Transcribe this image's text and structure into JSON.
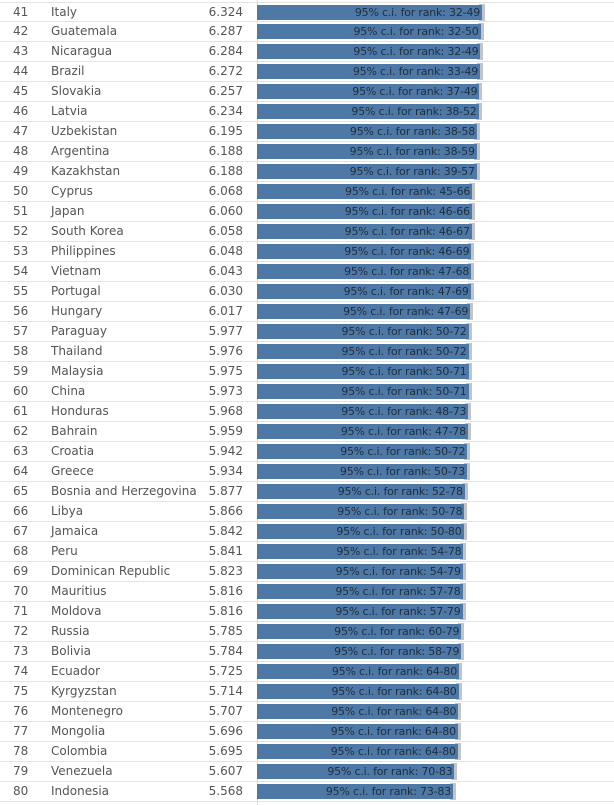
{
  "chart_data": {
    "type": "bar",
    "orientation": "horizontal",
    "label_prefix": "95% c.i. for rank: ",
    "rows": [
      {
        "rank": "41",
        "country": "Italy",
        "score": "6.324",
        "ci": "32-49"
      },
      {
        "rank": "42",
        "country": "Guatemala",
        "score": "6.287",
        "ci": "32-50"
      },
      {
        "rank": "43",
        "country": "Nicaragua",
        "score": "6.284",
        "ci": "32-49"
      },
      {
        "rank": "44",
        "country": "Brazil",
        "score": "6.272",
        "ci": "33-49"
      },
      {
        "rank": "45",
        "country": "Slovakia",
        "score": "6.257",
        "ci": "37-49"
      },
      {
        "rank": "46",
        "country": "Latvia",
        "score": "6.234",
        "ci": "38-52"
      },
      {
        "rank": "47",
        "country": "Uzbekistan",
        "score": "6.195",
        "ci": "38-58"
      },
      {
        "rank": "48",
        "country": "Argentina",
        "score": "6.188",
        "ci": "38-59"
      },
      {
        "rank": "49",
        "country": "Kazakhstan",
        "score": "6.188",
        "ci": "39-57"
      },
      {
        "rank": "50",
        "country": "Cyprus",
        "score": "6.068",
        "ci": "45-66"
      },
      {
        "rank": "51",
        "country": "Japan",
        "score": "6.060",
        "ci": "46-66"
      },
      {
        "rank": "52",
        "country": "South Korea",
        "score": "6.058",
        "ci": "46-67"
      },
      {
        "rank": "53",
        "country": "Philippines",
        "score": "6.048",
        "ci": "46-69"
      },
      {
        "rank": "54",
        "country": "Vietnam",
        "score": "6.043",
        "ci": "47-68"
      },
      {
        "rank": "55",
        "country": "Portugal",
        "score": "6.030",
        "ci": "47-69"
      },
      {
        "rank": "56",
        "country": "Hungary",
        "score": "6.017",
        "ci": "47-69"
      },
      {
        "rank": "57",
        "country": "Paraguay",
        "score": "5.977",
        "ci": "50-72"
      },
      {
        "rank": "58",
        "country": "Thailand",
        "score": "5.976",
        "ci": "50-72"
      },
      {
        "rank": "59",
        "country": "Malaysia",
        "score": "5.975",
        "ci": "50-71"
      },
      {
        "rank": "60",
        "country": "China",
        "score": "5.973",
        "ci": "50-71"
      },
      {
        "rank": "61",
        "country": "Honduras",
        "score": "5.968",
        "ci": "48-73"
      },
      {
        "rank": "62",
        "country": "Bahrain",
        "score": "5.959",
        "ci": "47-78"
      },
      {
        "rank": "63",
        "country": "Croatia",
        "score": "5.942",
        "ci": "50-72"
      },
      {
        "rank": "64",
        "country": "Greece",
        "score": "5.934",
        "ci": "50-73"
      },
      {
        "rank": "65",
        "country": "Bosnia and Herzegovina",
        "score": "5.877",
        "ci": "52-78"
      },
      {
        "rank": "66",
        "country": "Libya",
        "score": "5.866",
        "ci": "50-78"
      },
      {
        "rank": "67",
        "country": "Jamaica",
        "score": "5.842",
        "ci": "50-80"
      },
      {
        "rank": "68",
        "country": "Peru",
        "score": "5.841",
        "ci": "54-78"
      },
      {
        "rank": "69",
        "country": "Dominican Republic",
        "score": "5.823",
        "ci": "54-79"
      },
      {
        "rank": "70",
        "country": "Mauritius",
        "score": "5.816",
        "ci": "57-78"
      },
      {
        "rank": "71",
        "country": "Moldova",
        "score": "5.816",
        "ci": "57-79"
      },
      {
        "rank": "72",
        "country": "Russia",
        "score": "5.785",
        "ci": "60-79"
      },
      {
        "rank": "73",
        "country": "Bolivia",
        "score": "5.784",
        "ci": "58-79"
      },
      {
        "rank": "74",
        "country": "Ecuador",
        "score": "5.725",
        "ci": "64-80"
      },
      {
        "rank": "75",
        "country": "Kyrgyzstan",
        "score": "5.714",
        "ci": "64-80"
      },
      {
        "rank": "76",
        "country": "Montenegro",
        "score": "5.707",
        "ci": "64-80"
      },
      {
        "rank": "77",
        "country": "Mongolia",
        "score": "5.696",
        "ci": "64-80"
      },
      {
        "rank": "78",
        "country": "Colombia",
        "score": "5.695",
        "ci": "64-80"
      },
      {
        "rank": "79",
        "country": "Venezuela",
        "score": "5.607",
        "ci": "70-83"
      },
      {
        "rank": "80",
        "country": "Indonesia",
        "score": "5.568",
        "ci": "73-83"
      }
    ],
    "colors": {
      "bar": "#4e79a7",
      "ci_band": "#c4c4c4"
    }
  }
}
